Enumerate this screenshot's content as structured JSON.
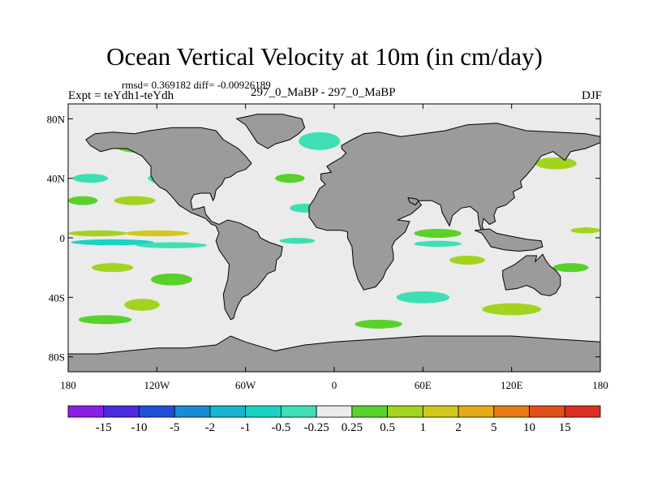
{
  "chart_data": {
    "type": "heatmap",
    "title": "Ocean Vertical Velocity at 10m (in cm/day)",
    "stats_line": "rmsd= 0.369182 diff= -0.00926189",
    "experiment": "Expt = teYdh1-teYdh",
    "model_label": "297_0_MaBP - 297_0_MaBP",
    "season": "DJF",
    "x_range": [
      -180,
      180
    ],
    "y_range": [
      -90,
      90
    ],
    "x_ticks": [
      {
        "value": -180,
        "label": "180"
      },
      {
        "value": -120,
        "label": "120W"
      },
      {
        "value": -60,
        "label": "60W"
      },
      {
        "value": 0,
        "label": "0"
      },
      {
        "value": 60,
        "label": "60E"
      },
      {
        "value": 120,
        "label": "120E"
      },
      {
        "value": 180,
        "label": "180"
      }
    ],
    "y_ticks": [
      {
        "value": 80,
        "label": "80N"
      },
      {
        "value": 40,
        "label": "40N"
      },
      {
        "value": 0,
        "label": "0"
      },
      {
        "value": -40,
        "label": "40S"
      },
      {
        "value": -80,
        "label": "80S"
      }
    ],
    "colorbar": {
      "labels": [
        "-15",
        "-10",
        "-5",
        "-2",
        "-1",
        "-0.5",
        "-0.25",
        "0.25",
        "0.5",
        "1",
        "2",
        "5",
        "10",
        "15"
      ],
      "colors": [
        "#8b1ee6",
        "#4b2be0",
        "#1f4fd9",
        "#1a8ad6",
        "#19b4d0",
        "#19d2c4",
        "#3ce0b4",
        "#ebebeb",
        "#58d22a",
        "#a2d41e",
        "#d2c81a",
        "#e6a918",
        "#e67a14",
        "#e2501a",
        "#dc2e20"
      ]
    },
    "land_color": "#9b9b9b",
    "land_masks": [
      {
        "name": "Americas",
        "outline": [
          [
            -70,
            -55
          ],
          [
            -74,
            -48
          ],
          [
            -75,
            -38
          ],
          [
            -72,
            -28
          ],
          [
            -71,
            -18
          ],
          [
            -78,
            -8
          ],
          [
            -80,
            -2
          ],
          [
            -78,
            3
          ],
          [
            -80,
            8
          ],
          [
            -83,
            9
          ],
          [
            -87,
            13
          ],
          [
            -92,
            15
          ],
          [
            -97,
            17
          ],
          [
            -105,
            22
          ],
          [
            -110,
            28
          ],
          [
            -114,
            32
          ],
          [
            -118,
            34
          ],
          [
            -122,
            38
          ],
          [
            -124,
            42
          ],
          [
            -124,
            48
          ],
          [
            -130,
            55
          ],
          [
            -140,
            60
          ],
          [
            -150,
            60
          ],
          [
            -158,
            58
          ],
          [
            -165,
            62
          ],
          [
            -168,
            66
          ],
          [
            -162,
            70
          ],
          [
            -150,
            71
          ],
          [
            -135,
            70
          ],
          [
            -125,
            72
          ],
          [
            -110,
            74
          ],
          [
            -90,
            74
          ],
          [
            -80,
            72
          ],
          [
            -75,
            66
          ],
          [
            -65,
            60
          ],
          [
            -60,
            55
          ],
          [
            -56,
            50
          ],
          [
            -60,
            46
          ],
          [
            -66,
            44
          ],
          [
            -70,
            41
          ],
          [
            -74,
            40
          ],
          [
            -76,
            36
          ],
          [
            -80,
            32
          ],
          [
            -81,
            27
          ],
          [
            -82,
            25
          ],
          [
            -84,
            30
          ],
          [
            -90,
            30
          ],
          [
            -95,
            29
          ],
          [
            -97,
            25
          ],
          [
            -96,
            19
          ],
          [
            -91,
            20
          ],
          [
            -88,
            21
          ],
          [
            -87,
            16
          ],
          [
            -83,
            11
          ],
          [
            -78,
            9
          ],
          [
            -76,
            10
          ],
          [
            -72,
            12
          ],
          [
            -64,
            10
          ],
          [
            -60,
            8
          ],
          [
            -52,
            4
          ],
          [
            -50,
            0
          ],
          [
            -44,
            -3
          ],
          [
            -35,
            -6
          ],
          [
            -36,
            -12
          ],
          [
            -39,
            -15
          ],
          [
            -40,
            -22
          ],
          [
            -45,
            -24
          ],
          [
            -48,
            -28
          ],
          [
            -52,
            -33
          ],
          [
            -58,
            -38
          ],
          [
            -62,
            -40
          ],
          [
            -65,
            -45
          ],
          [
            -67,
            -50
          ],
          [
            -68,
            -54
          ]
        ]
      },
      {
        "name": "Greenland",
        "outline": [
          [
            -45,
            60
          ],
          [
            -52,
            64
          ],
          [
            -56,
            70
          ],
          [
            -60,
            76
          ],
          [
            -66,
            80
          ],
          [
            -52,
            83
          ],
          [
            -35,
            83
          ],
          [
            -22,
            80
          ],
          [
            -20,
            74
          ],
          [
            -24,
            70
          ],
          [
            -30,
            66
          ],
          [
            -40,
            63
          ]
        ]
      },
      {
        "name": "Africa-Eurasia",
        "outline": [
          [
            20,
            -35
          ],
          [
            16,
            -28
          ],
          [
            13,
            -18
          ],
          [
            12,
            -6
          ],
          [
            9,
            0
          ],
          [
            9,
            4
          ],
          [
            5,
            5
          ],
          [
            -5,
            5
          ],
          [
            -12,
            7
          ],
          [
            -17,
            14
          ],
          [
            -17,
            21
          ],
          [
            -13,
            27
          ],
          [
            -10,
            33
          ],
          [
            -6,
            36
          ],
          [
            -9,
            39
          ],
          [
            -9,
            43
          ],
          [
            -2,
            44
          ],
          [
            -5,
            48
          ],
          [
            -2,
            50
          ],
          [
            5,
            54
          ],
          [
            8,
            57
          ],
          [
            5,
            60
          ],
          [
            5,
            62
          ],
          [
            12,
            66
          ],
          [
            20,
            70
          ],
          [
            30,
            71
          ],
          [
            45,
            68
          ],
          [
            60,
            70
          ],
          [
            75,
            72
          ],
          [
            90,
            76
          ],
          [
            110,
            77
          ],
          [
            130,
            72
          ],
          [
            150,
            71
          ],
          [
            170,
            70
          ],
          [
            180,
            68
          ],
          [
            180,
            64
          ],
          [
            170,
            60
          ],
          [
            160,
            58
          ],
          [
            156,
            52
          ],
          [
            148,
            58
          ],
          [
            140,
            55
          ],
          [
            135,
            48
          ],
          [
            130,
            42
          ],
          [
            126,
            38
          ],
          [
            127,
            34
          ],
          [
            121,
            31
          ],
          [
            122,
            27
          ],
          [
            116,
            22
          ],
          [
            110,
            20
          ],
          [
            108,
            15
          ],
          [
            109,
            11
          ],
          [
            105,
            9
          ],
          [
            101,
            13
          ],
          [
            100,
            8
          ],
          [
            103,
            1
          ],
          [
            100,
            4
          ],
          [
            98,
            9
          ],
          [
            97,
            17
          ],
          [
            92,
            21
          ],
          [
            86,
            20
          ],
          [
            80,
            15
          ],
          [
            78,
            8
          ],
          [
            73,
            17
          ],
          [
            72,
            22
          ],
          [
            66,
            25
          ],
          [
            57,
            25
          ],
          [
            55,
            22
          ],
          [
            51,
            24
          ],
          [
            50,
            27
          ],
          [
            56,
            26
          ],
          [
            59,
            22
          ],
          [
            52,
            16
          ],
          [
            45,
            13
          ],
          [
            43,
            12
          ],
          [
            51,
            11
          ],
          [
            48,
            4
          ],
          [
            41,
            -2
          ],
          [
            39,
            -6
          ],
          [
            40,
            -11
          ],
          [
            40,
            -15
          ],
          [
            35,
            -22
          ],
          [
            33,
            -27
          ],
          [
            28,
            -33
          ]
        ]
      },
      {
        "name": "Australia",
        "outline": [
          [
            114,
            -22
          ],
          [
            122,
            -18
          ],
          [
            130,
            -12
          ],
          [
            137,
            -12
          ],
          [
            136,
            -16
          ],
          [
            141,
            -11
          ],
          [
            143,
            -15
          ],
          [
            146,
            -19
          ],
          [
            150,
            -22
          ],
          [
            153,
            -26
          ],
          [
            153,
            -32
          ],
          [
            150,
            -37
          ],
          [
            146,
            -39
          ],
          [
            140,
            -38
          ],
          [
            135,
            -34
          ],
          [
            130,
            -32
          ],
          [
            124,
            -34
          ],
          [
            116,
            -35
          ],
          [
            114,
            -26
          ]
        ]
      },
      {
        "name": "Antarctica",
        "outline": [
          [
            -180,
            -90
          ],
          [
            180,
            -90
          ],
          [
            180,
            -70
          ],
          [
            150,
            -68
          ],
          [
            120,
            -66
          ],
          [
            90,
            -66
          ],
          [
            60,
            -66
          ],
          [
            30,
            -68
          ],
          [
            0,
            -70
          ],
          [
            -20,
            -72
          ],
          [
            -40,
            -76
          ],
          [
            -60,
            -70
          ],
          [
            -70,
            -66
          ],
          [
            -80,
            -72
          ],
          [
            -100,
            -74
          ],
          [
            -120,
            -74
          ],
          [
            -140,
            -76
          ],
          [
            -160,
            -78
          ],
          [
            -180,
            -78
          ]
        ]
      },
      {
        "name": "Indonesia",
        "outline": [
          [
            95,
            5
          ],
          [
            100,
            3
          ],
          [
            106,
            -6
          ],
          [
            115,
            -8
          ],
          [
            125,
            -9
          ],
          [
            135,
            -8
          ],
          [
            141,
            -6
          ],
          [
            140,
            -2
          ],
          [
            130,
            -1
          ],
          [
            120,
            1
          ],
          [
            110,
            3
          ],
          [
            105,
            6
          ]
        ]
      }
    ],
    "anomaly_patches": [
      {
        "lon": -130,
        "lat": 62,
        "rx": 18,
        "ry": 5,
        "value": 0.4
      },
      {
        "lon": -90,
        "lat": 58,
        "rx": 22,
        "ry": 5,
        "value": 0.6
      },
      {
        "lon": -10,
        "lat": 65,
        "rx": 14,
        "ry": 6,
        "value": -0.3
      },
      {
        "lon": 150,
        "lat": 50,
        "rx": 14,
        "ry": 4,
        "value": 0.5
      },
      {
        "lon": -165,
        "lat": 40,
        "rx": 12,
        "ry": 3,
        "value": -0.4
      },
      {
        "lon": -110,
        "lat": 40,
        "rx": 16,
        "ry": 4,
        "value": -0.4
      },
      {
        "lon": -170,
        "lat": 25,
        "rx": 10,
        "ry": 3,
        "value": 0.3
      },
      {
        "lon": -135,
        "lat": 25,
        "rx": 14,
        "ry": 3,
        "value": 0.5
      },
      {
        "lon": -160,
        "lat": 3,
        "rx": 20,
        "ry": 2,
        "value": 0.8
      },
      {
        "lon": -120,
        "lat": 3,
        "rx": 22,
        "ry": 2,
        "value": 1.0
      },
      {
        "lon": -150,
        "lat": -3,
        "rx": 28,
        "ry": 2,
        "value": -0.7
      },
      {
        "lon": -110,
        "lat": -5,
        "rx": 24,
        "ry": 2,
        "value": -0.5
      },
      {
        "lon": -150,
        "lat": -20,
        "rx": 14,
        "ry": 3,
        "value": 0.6
      },
      {
        "lon": -110,
        "lat": -28,
        "rx": 14,
        "ry": 4,
        "value": 0.4
      },
      {
        "lon": -130,
        "lat": -45,
        "rx": 12,
        "ry": 4,
        "value": 0.5
      },
      {
        "lon": -155,
        "lat": -55,
        "rx": 18,
        "ry": 3,
        "value": 0.3
      },
      {
        "lon": -20,
        "lat": 20,
        "rx": 10,
        "ry": 3,
        "value": -0.3
      },
      {
        "lon": -30,
        "lat": 40,
        "rx": 10,
        "ry": 3,
        "value": 0.3
      },
      {
        "lon": -25,
        "lat": -2,
        "rx": 12,
        "ry": 2,
        "value": -0.3
      },
      {
        "lon": 70,
        "lat": 3,
        "rx": 16,
        "ry": 3,
        "value": 0.4
      },
      {
        "lon": 70,
        "lat": -4,
        "rx": 16,
        "ry": 2,
        "value": -0.5
      },
      {
        "lon": 90,
        "lat": -15,
        "rx": 12,
        "ry": 3,
        "value": 0.6
      },
      {
        "lon": 60,
        "lat": -40,
        "rx": 18,
        "ry": 4,
        "value": -0.4
      },
      {
        "lon": 120,
        "lat": -48,
        "rx": 20,
        "ry": 4,
        "value": 0.5
      },
      {
        "lon": 160,
        "lat": -20,
        "rx": 12,
        "ry": 3,
        "value": 0.4
      },
      {
        "lon": 170,
        "lat": 5,
        "rx": 10,
        "ry": 2,
        "value": 0.6
      },
      {
        "lon": 30,
        "lat": -58,
        "rx": 16,
        "ry": 3,
        "value": 0.3
      }
    ]
  }
}
